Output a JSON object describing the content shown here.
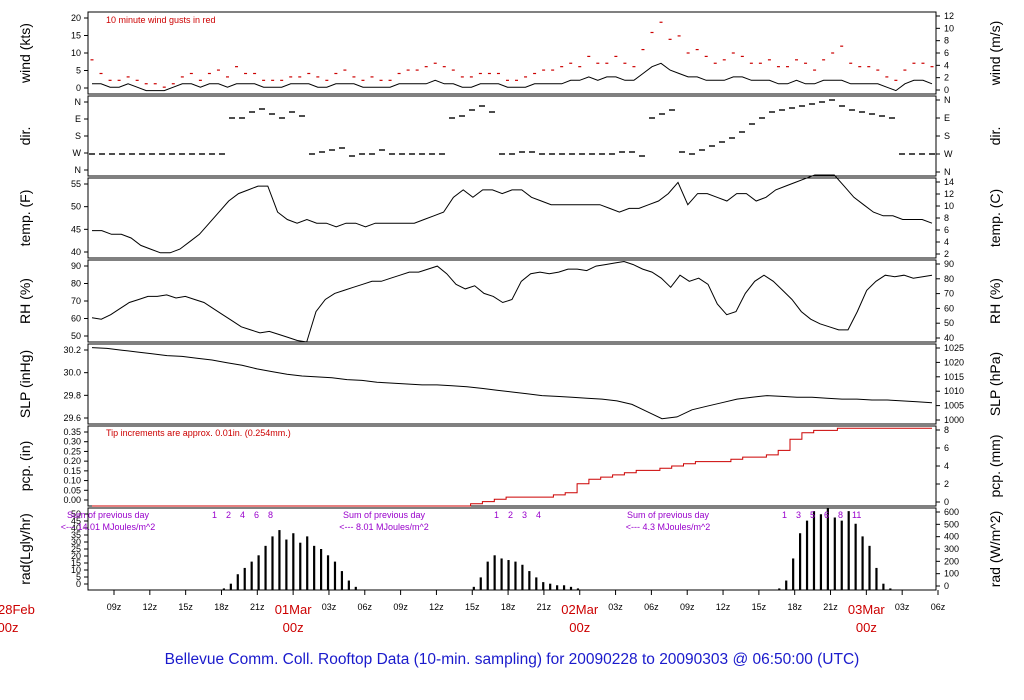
{
  "footer_title": "Bellevue Comm. Coll. Rooftop Data (10-min. sampling) for 20090228  to  20090303 @ 06:50:00  (UTC)",
  "colors": {
    "axis": "#000000",
    "gust": "#cc0000",
    "precip": "#cc0000",
    "note": "#cc0000",
    "radnote": "#9900cc",
    "date": "#cc0000",
    "title": "#1a1acc"
  },
  "chart_data": [
    {
      "type": "line",
      "panel": "wind",
      "ylabel_left": "wind (kts)",
      "ylabel_right": "wind (m/s)",
      "yticks_left": [
        "0",
        "5",
        "10",
        "15",
        "20"
      ],
      "yticks_right": [
        "0",
        "2",
        "4",
        "6",
        "8",
        "10",
        "12"
      ],
      "ylim": [
        0,
        24
      ],
      "annotation": "10  minute wind gusts in red",
      "series": [
        {
          "name": "sustained",
          "values": [
            3,
            3,
            2,
            2,
            3,
            2,
            1,
            1,
            1,
            2,
            3,
            3,
            2,
            3,
            3,
            2,
            3,
            3,
            3,
            2,
            2,
            2,
            3,
            3,
            3,
            2,
            2,
            3,
            3,
            3,
            2,
            2,
            2,
            2,
            3,
            3,
            3,
            3,
            4,
            3,
            3,
            2,
            2,
            3,
            3,
            3,
            2,
            2,
            2,
            3,
            3,
            3,
            3,
            4,
            4,
            5,
            4,
            5,
            5,
            4,
            4,
            6,
            8,
            9,
            7,
            6,
            5,
            5,
            4,
            4,
            4,
            5,
            5,
            4,
            4,
            4,
            3,
            3,
            4,
            3,
            3,
            4,
            4,
            4,
            3,
            3,
            3,
            3,
            2,
            1,
            3,
            4,
            4,
            3
          ]
        },
        {
          "name": "gusts",
          "values": [
            10,
            6,
            4,
            4,
            5,
            4,
            3,
            3,
            2,
            3,
            5,
            6,
            4,
            6,
            7,
            5,
            8,
            6,
            6,
            4,
            4,
            4,
            5,
            5,
            6,
            5,
            4,
            6,
            7,
            5,
            4,
            5,
            4,
            4,
            6,
            7,
            7,
            8,
            9,
            8,
            7,
            5,
            5,
            6,
            6,
            6,
            4,
            4,
            5,
            6,
            7,
            7,
            8,
            9,
            8,
            11,
            9,
            9,
            11,
            9,
            8,
            13,
            18,
            21,
            16,
            17,
            12,
            13,
            11,
            9,
            10,
            12,
            11,
            9,
            9,
            10,
            8,
            8,
            10,
            9,
            7,
            10,
            12,
            14,
            9,
            8,
            8,
            7,
            5,
            4,
            7,
            9,
            9,
            8
          ]
        }
      ]
    },
    {
      "type": "scatter",
      "panel": "dir",
      "ylabel_left": "dir.",
      "ylabel_right": "dir.",
      "yticks_left": [
        "N",
        "W",
        "S",
        "E",
        "N"
      ],
      "yticks_right": [
        "N",
        "W",
        "S",
        "E",
        "N"
      ],
      "ylim": [
        0,
        360
      ],
      "values": [
        90,
        90,
        90,
        90,
        90,
        90,
        90,
        90,
        90,
        90,
        90,
        90,
        90,
        90,
        270,
        270,
        300,
        315,
        290,
        270,
        300,
        280,
        90,
        100,
        110,
        120,
        80,
        90,
        90,
        110,
        90,
        90,
        90,
        90,
        90,
        90,
        270,
        280,
        310,
        330,
        300,
        90,
        90,
        100,
        100,
        90,
        90,
        90,
        90,
        90,
        90,
        90,
        90,
        100,
        100,
        80,
        270,
        290,
        310,
        100,
        90,
        110,
        130,
        150,
        170,
        200,
        240,
        270,
        300,
        310,
        320,
        330,
        340,
        350,
        360,
        330,
        310,
        300,
        290,
        280,
        270,
        90,
        90,
        90,
        90
      ]
    },
    {
      "type": "line",
      "panel": "temp",
      "ylabel_left": "temp. (F)",
      "ylabel_right": "temp. (C)",
      "yticks_left": [
        "40",
        "45",
        "50",
        "55"
      ],
      "yticks_right": [
        "2",
        "4",
        "6",
        "8",
        "10",
        "12",
        "14"
      ],
      "ylim": [
        35.6,
        57.2
      ],
      "values": [
        43,
        43,
        42,
        42,
        41,
        39,
        38,
        37,
        37,
        38,
        40,
        42,
        45,
        48,
        51,
        53,
        54,
        55,
        55,
        48,
        46,
        45,
        46,
        45,
        45,
        44,
        45,
        45,
        44,
        45,
        45,
        45,
        45,
        45,
        46,
        47,
        48,
        52,
        54,
        52,
        54,
        54,
        53,
        54,
        54,
        52,
        51,
        50,
        50,
        50,
        50,
        50,
        50,
        49,
        48,
        49,
        49,
        50,
        51,
        53,
        56,
        50,
        53,
        53,
        52,
        51,
        53,
        53,
        51,
        52,
        54,
        55,
        56,
        57,
        58,
        58,
        58,
        55,
        52,
        50,
        48,
        47,
        47,
        46,
        46,
        46,
        45
      ]
    },
    {
      "type": "line",
      "panel": "rh",
      "ylabel_left": "RH (%)",
      "ylabel_right": "RH (%)",
      "yticks_left": [
        "50",
        "60",
        "70",
        "80",
        "90"
      ],
      "yticks_right": [
        "40",
        "50",
        "60",
        "70",
        "80",
        "90"
      ],
      "ylim": [
        40,
        94
      ],
      "values": [
        56,
        55,
        58,
        62,
        66,
        68,
        70,
        70,
        71,
        69,
        70,
        68,
        66,
        62,
        58,
        54,
        50,
        48,
        46,
        47,
        45,
        43,
        41,
        40,
        60,
        68,
        72,
        74,
        76,
        78,
        80,
        80,
        82,
        84,
        86,
        86,
        88,
        90,
        85,
        78,
        75,
        77,
        72,
        70,
        66,
        68,
        80,
        85,
        86,
        85,
        86,
        88,
        88,
        87,
        90,
        91,
        92,
        93,
        91,
        88,
        86,
        82,
        76,
        84,
        80,
        82,
        78,
        65,
        58,
        60,
        72,
        80,
        84,
        80,
        74,
        68,
        60,
        55,
        52,
        50,
        48,
        48,
        60,
        74,
        80,
        84,
        83,
        84,
        82,
        83,
        84
      ]
    },
    {
      "type": "line",
      "panel": "slp",
      "ylabel_left": "SLP (inHg)",
      "ylabel_right": "SLP (hPa)",
      "yticks_left": [
        "29.6",
        "29.8",
        "30.0",
        "30.2"
      ],
      "yticks_right": [
        "1000",
        "1005",
        "1010",
        "1015",
        "1020",
        "1025"
      ],
      "ylim": [
        29.46,
        30.36
      ],
      "values": [
        30.32,
        30.31,
        30.29,
        30.27,
        30.25,
        30.23,
        30.22,
        30.2,
        30.18,
        30.15,
        30.12,
        30.08,
        30.05,
        30.02,
        30.0,
        29.99,
        29.98,
        29.96,
        29.95,
        29.93,
        29.92,
        29.91,
        29.9,
        29.9,
        29.89,
        29.88,
        29.86,
        29.84,
        29.82,
        29.8,
        29.78,
        29.77,
        29.76,
        29.75,
        29.74,
        29.72,
        29.68,
        29.6,
        29.52,
        29.54,
        29.62,
        29.66,
        29.7,
        29.74,
        29.76,
        29.78,
        29.77,
        29.76,
        29.76,
        29.75,
        29.74,
        29.74,
        29.73,
        29.73,
        29.72,
        29.71,
        29.7
      ]
    },
    {
      "type": "line",
      "panel": "pcp",
      "ylabel_left": "pcp. (in)",
      "ylabel_right": "pcp. (mm)",
      "yticks_left": [
        "0.00",
        "0.05",
        "0.10",
        "0.15",
        "0.20",
        "0.25",
        "0.30",
        "0.35"
      ],
      "yticks_right": [
        "0",
        "2",
        "4",
        "6",
        "8"
      ],
      "ylim": [
        0,
        0.36
      ],
      "annotation": "Tip increments are approx. 0.01in. (0.254mm.)",
      "values": [
        0,
        0,
        0,
        0,
        0,
        0,
        0,
        0,
        0,
        0,
        0,
        0,
        0,
        0,
        0,
        0,
        0,
        0,
        0,
        0,
        0,
        0,
        0,
        0,
        0,
        0,
        0,
        0,
        0,
        0,
        0,
        0,
        0.01,
        0.02,
        0.03,
        0.04,
        0.04,
        0.04,
        0.04,
        0.05,
        0.06,
        0.1,
        0.12,
        0.13,
        0.14,
        0.15,
        0.16,
        0.16,
        0.17,
        0.18,
        0.19,
        0.2,
        0.2,
        0.2,
        0.21,
        0.22,
        0.22,
        0.23,
        0.25,
        0.3,
        0.33,
        0.34,
        0.34,
        0.35,
        0.35,
        0.35,
        0.35,
        0.35,
        0.35,
        0.35,
        0.35,
        0.35
      ]
    },
    {
      "type": "area",
      "panel": "rad",
      "ylabel_left": "rad(Lgly/hr)",
      "ylabel_right": "rad (W/m^2)",
      "yticks_left": [
        "0",
        "5",
        "10",
        "15",
        "20",
        "25",
        "30",
        "35",
        "40",
        "45",
        "50"
      ],
      "yticks_right": [
        "0",
        "100",
        "200",
        "300",
        "400",
        "500",
        "600"
      ],
      "ylim": [
        0,
        52
      ],
      "day_notes": [
        {
          "line1": "Sum of previous day",
          "line2": "<--- 14.01 MJoules/m^2",
          "hours": [
            "1",
            "2",
            "4",
            "6",
            "8"
          ]
        },
        {
          "line1": "Sum of previous day",
          "line2": "<--- 8.01 MJoules/m^2",
          "hours": [
            "1",
            "2",
            "3",
            "4"
          ]
        },
        {
          "line1": "Sum of previous day",
          "line2": "<--- 4.3 MJoules/m^2",
          "hours": [
            "1",
            "3",
            "5",
            "6",
            "8",
            "11"
          ]
        }
      ],
      "values": [
        0,
        0,
        0,
        0,
        0,
        0,
        0,
        0,
        0,
        0,
        0,
        0,
        0,
        0,
        0,
        0,
        0,
        0,
        0,
        1,
        4,
        10,
        14,
        18,
        22,
        28,
        34,
        38,
        32,
        36,
        30,
        34,
        28,
        26,
        22,
        18,
        12,
        6,
        2,
        0,
        0,
        0,
        0,
        0,
        0,
        0,
        0,
        0,
        0,
        0,
        0,
        0,
        0,
        0,
        0,
        2,
        8,
        18,
        22,
        20,
        19,
        18,
        16,
        12,
        8,
        5,
        4,
        3,
        3,
        2,
        1,
        0,
        0,
        0,
        0,
        0,
        0,
        0,
        0,
        0,
        0,
        0,
        0,
        0,
        0,
        0,
        0,
        0,
        0,
        0,
        0,
        0,
        0,
        0,
        0,
        0,
        0,
        0,
        0,
        1,
        6,
        20,
        36,
        44,
        50,
        48,
        52,
        46,
        44,
        50,
        42,
        34,
        28,
        14,
        4,
        1,
        0,
        0,
        0,
        0,
        0,
        0
      ]
    }
  ],
  "x_axis": {
    "ticks": [
      "09z",
      "12z",
      "15z",
      "18z",
      "21z",
      "01Mar",
      "03z",
      "06z",
      "09z",
      "12z",
      "15z",
      "18z",
      "21z",
      "02Mar",
      "03z",
      "06z",
      "09z",
      "12z",
      "15z",
      "18z",
      "21z",
      "03Mar",
      "03z",
      "06z"
    ],
    "date_labels": [
      {
        "top": "28Feb",
        "bottom": "00z"
      },
      {
        "top": "01Mar",
        "bottom": "00z"
      },
      {
        "top": "02Mar",
        "bottom": "00z"
      },
      {
        "top": "03Mar",
        "bottom": "00z"
      }
    ]
  }
}
